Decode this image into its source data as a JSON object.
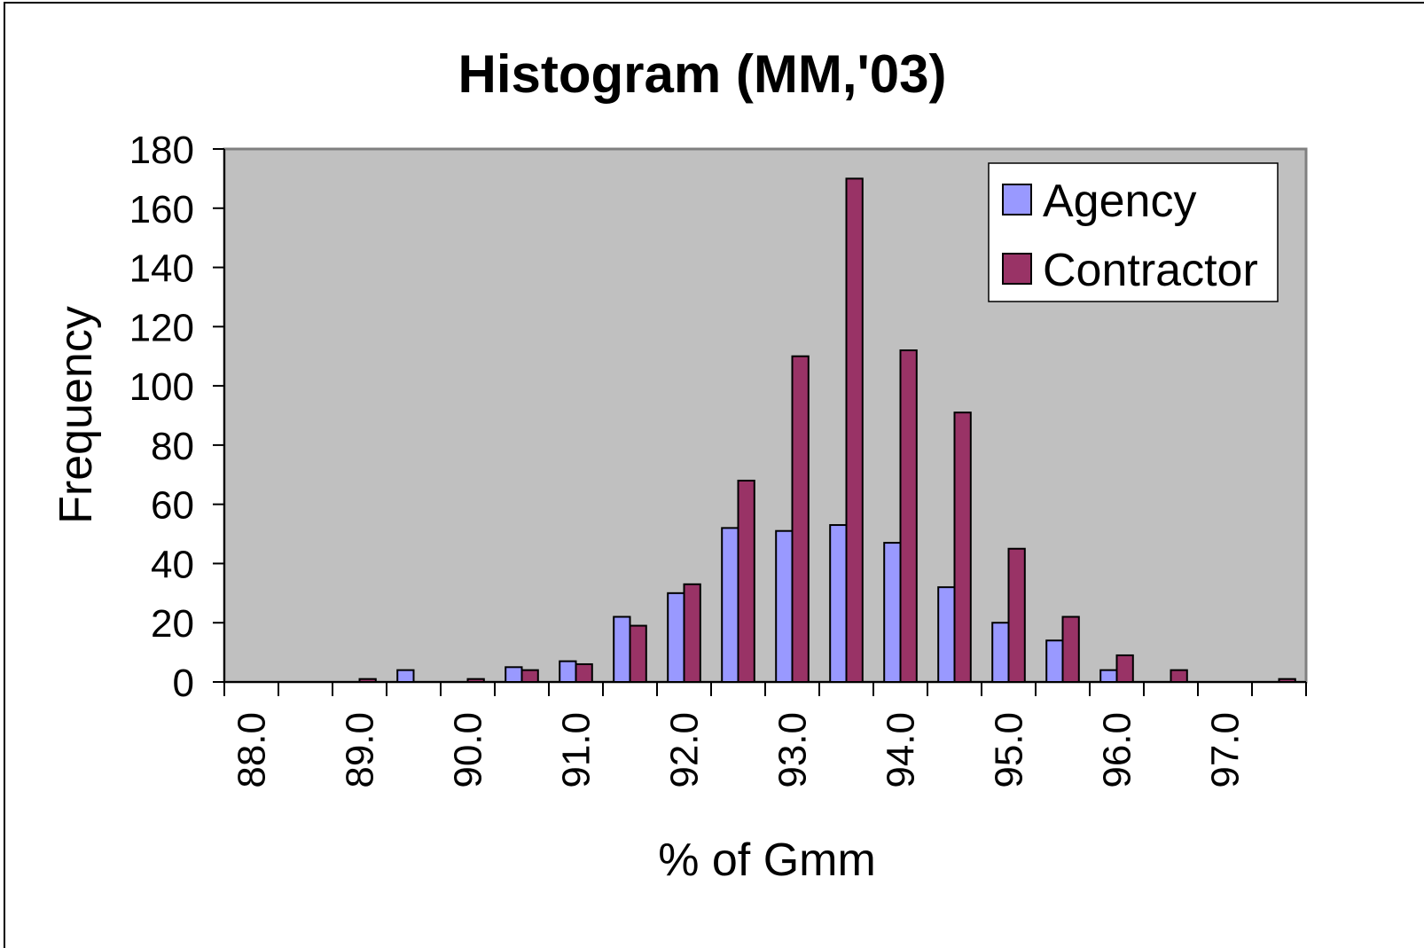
{
  "chart_data": {
    "type": "bar",
    "title": "Histogram (MM,'03)",
    "x_label": "% of Gmm",
    "y_label": "Frequency",
    "categories": [
      "88.0",
      null,
      "89.0",
      null,
      "90.0",
      null,
      "91.0",
      null,
      "92.0",
      null,
      "93.0",
      null,
      "94.0",
      null,
      "95.0",
      null,
      "96.0",
      null,
      "97.0",
      null
    ],
    "series": [
      {
        "name": "Agency",
        "color": "#9999ff",
        "values": [
          0,
          0,
          0,
          4,
          0,
          5,
          7,
          22,
          30,
          52,
          51,
          53,
          47,
          32,
          20,
          14,
          4,
          0,
          0,
          0
        ]
      },
      {
        "name": "Contractor",
        "color": "#993366",
        "values": [
          0,
          0,
          1,
          0,
          1,
          4,
          6,
          19,
          33,
          68,
          110,
          170,
          112,
          91,
          45,
          22,
          9,
          4,
          0,
          1
        ]
      }
    ],
    "ylim": [
      0,
      180
    ],
    "yticks": [
      0,
      20,
      40,
      60,
      80,
      100,
      120,
      140,
      160,
      180
    ],
    "legend": "top-right"
  }
}
